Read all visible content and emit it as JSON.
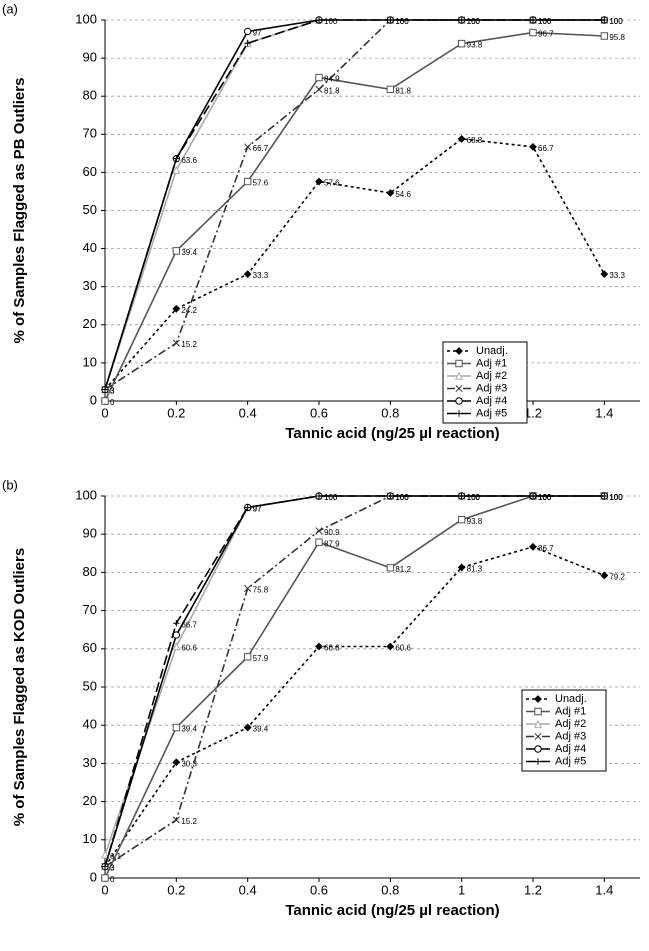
{
  "chart_data": [
    {
      "type": "line",
      "panel_label": "(a)",
      "x_label": "Tannic acid (ng/25 µl reaction)",
      "y_label": "% of Samples Flagged as PB Outliers",
      "x": [
        0,
        0.2,
        0.4,
        0.6,
        0.8,
        1,
        1.2,
        1.4
      ],
      "xlim": [
        0,
        1.5
      ],
      "xticks": [
        0,
        0.2,
        0.4,
        0.6,
        0.8,
        1,
        1.2,
        1.4
      ],
      "ylim": [
        0,
        100
      ],
      "yticks": [
        0,
        10,
        20,
        30,
        40,
        50,
        60,
        70,
        80,
        90,
        100
      ],
      "grid": true,
      "legend": "lower right",
      "series": [
        {
          "name": "Unadj.",
          "color": "#000000",
          "dash": "3,3",
          "marker": "diamond",
          "data_labels": true,
          "values": [
            3,
            24.2,
            33.3,
            57.6,
            54.6,
            68.8,
            66.7,
            33.3
          ]
        },
        {
          "name": "Adj #1",
          "color": "#555555",
          "dash": "none",
          "marker": "square",
          "data_labels": true,
          "values": [
            0,
            39.4,
            57.6,
            84.9,
            81.8,
            93.8,
            96.7,
            95.8
          ]
        },
        {
          "name": "Adj #2",
          "color": "#aaaaaa",
          "dash": "none",
          "marker": "triangle",
          "data_labels": false,
          "values": [
            3,
            60.6,
            93.9,
            100,
            100,
            100,
            100,
            100
          ]
        },
        {
          "name": "Adj #3",
          "color": "#333333",
          "dash": "8,3,2,3",
          "marker": "cross",
          "data_labels": true,
          "values": [
            3,
            15.2,
            66.7,
            81.8,
            100,
            100,
            100,
            100
          ]
        },
        {
          "name": "Adj #4",
          "color": "#000000",
          "dash": "none",
          "marker": "circle",
          "data_labels": true,
          "values": [
            3,
            63.6,
            97,
            100,
            100,
            100,
            100,
            100
          ]
        },
        {
          "name": "Adj #5",
          "color": "#000000",
          "dash": "10,4",
          "marker": "plus",
          "data_labels": false,
          "values": [
            3,
            63.6,
            93.9,
            100,
            100,
            100,
            100,
            100
          ]
        }
      ]
    },
    {
      "type": "line",
      "panel_label": "(b)",
      "x_label": "Tannic acid (ng/25 µl reaction)",
      "y_label": "% of Samples Flagged as KOD Outliers",
      "x": [
        0,
        0.2,
        0.4,
        0.6,
        0.8,
        1,
        1.2,
        1.4
      ],
      "xlim": [
        0,
        1.5
      ],
      "xticks": [
        0,
        0.2,
        0.4,
        0.6,
        0.8,
        1,
        1.2,
        1.4
      ],
      "ylim": [
        0,
        100
      ],
      "yticks": [
        0,
        10,
        20,
        30,
        40,
        50,
        60,
        70,
        80,
        90,
        100
      ],
      "grid": true,
      "legend": "lower right",
      "series": [
        {
          "name": "Unadj.",
          "color": "#000000",
          "dash": "3,3",
          "marker": "diamond",
          "data_labels": true,
          "values": [
            3,
            30.3,
            39.4,
            60.6,
            60.6,
            81.3,
            86.7,
            79.2
          ]
        },
        {
          "name": "Adj #1",
          "color": "#555555",
          "dash": "none",
          "marker": "square",
          "data_labels": true,
          "values": [
            0,
            39.4,
            57.9,
            87.9,
            81.2,
            93.8,
            100,
            100
          ]
        },
        {
          "name": "Adj #2",
          "color": "#aaaaaa",
          "dash": "none",
          "marker": "triangle",
          "data_labels": true,
          "values": [
            6.1,
            60.6,
            97,
            100,
            100,
            100,
            100,
            100
          ]
        },
        {
          "name": "Adj #3",
          "color": "#333333",
          "dash": "8,3,2,3",
          "marker": "cross",
          "data_labels": true,
          "values": [
            3,
            15.2,
            75.8,
            90.9,
            100,
            100,
            100,
            100
          ]
        },
        {
          "name": "Adj #4",
          "color": "#000000",
          "dash": "none",
          "marker": "circle",
          "data_labels": false,
          "values": [
            3,
            63.6,
            97,
            100,
            100,
            100,
            100,
            100
          ]
        },
        {
          "name": "Adj #5",
          "color": "#000000",
          "dash": "10,4",
          "marker": "plus",
          "data_labels": true,
          "values": [
            3,
            66.7,
            97,
            100,
            100,
            100,
            100,
            100
          ]
        }
      ]
    }
  ]
}
